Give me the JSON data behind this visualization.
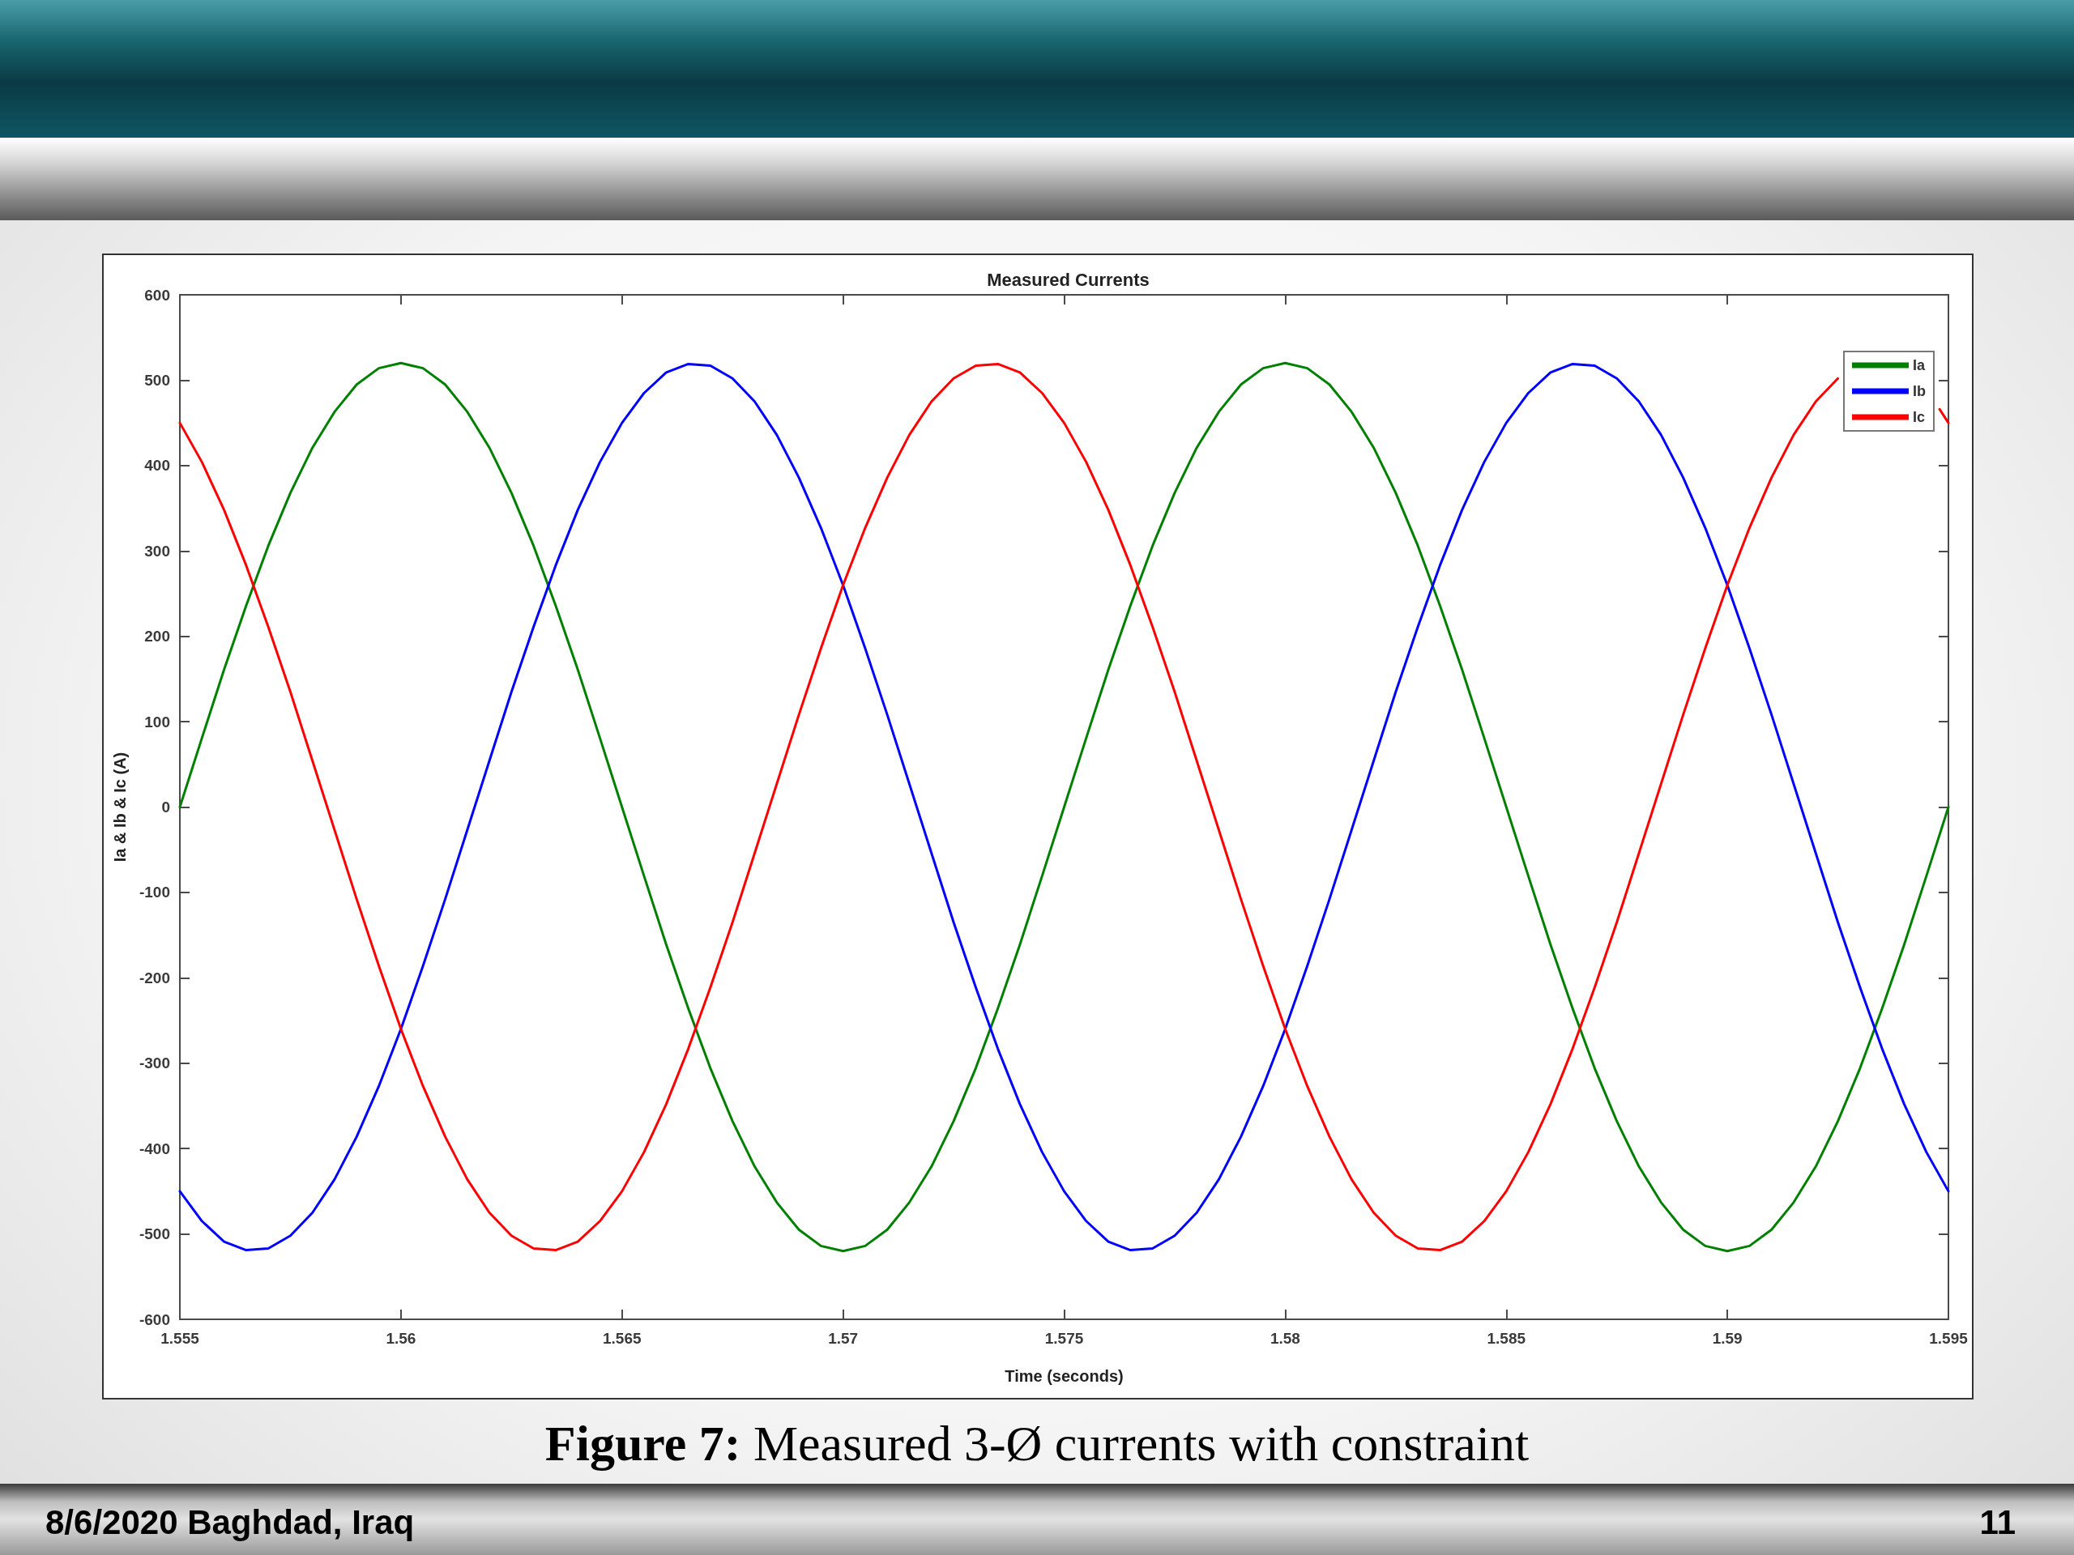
{
  "chart_data": {
    "type": "line",
    "title": "Measured Currents",
    "xlabel": "Time (seconds)",
    "ylabel": "Ia & Ib & Ic (A)",
    "x": [
      1.555,
      1.5555,
      1.556,
      1.5565,
      1.557,
      1.5575,
      1.558,
      1.5585,
      1.559,
      1.5595,
      1.56,
      1.5605,
      1.561,
      1.5615,
      1.562,
      1.5625,
      1.563,
      1.5635,
      1.564,
      1.5645,
      1.565,
      1.5655,
      1.566,
      1.5665,
      1.567,
      1.5675,
      1.568,
      1.5685,
      1.569,
      1.5695,
      1.57,
      1.5705,
      1.571,
      1.5715,
      1.572,
      1.5725,
      1.573,
      1.5735,
      1.574,
      1.5745,
      1.575,
      1.5755,
      1.576,
      1.5765,
      1.577,
      1.5775,
      1.578,
      1.5785,
      1.579,
      1.5795,
      1.58,
      1.5805,
      1.581,
      1.5815,
      1.582,
      1.5825,
      1.583,
      1.5835,
      1.584,
      1.5845,
      1.585,
      1.5855,
      1.586,
      1.5865,
      1.587,
      1.5875,
      1.588,
      1.5885,
      1.589,
      1.5895,
      1.59,
      1.5905,
      1.591,
      1.5915,
      1.592,
      1.5925,
      1.593,
      1.5935,
      1.594,
      1.5945,
      1.595
    ],
    "series": [
      {
        "name": "Ia",
        "color": "#008000",
        "values": [
          0,
          81,
          161,
          236,
          306,
          368,
          421,
          463,
          495,
          514,
          520,
          514,
          495,
          463,
          421,
          368,
          306,
          236,
          161,
          81,
          0,
          -81,
          -161,
          -236,
          -306,
          -368,
          -421,
          -463,
          -495,
          -514,
          -520,
          -514,
          -495,
          -463,
          -421,
          -368,
          -306,
          -236,
          -161,
          -81,
          0,
          81,
          161,
          236,
          306,
          368,
          421,
          463,
          495,
          514,
          520,
          514,
          495,
          463,
          421,
          368,
          306,
          236,
          161,
          81,
          0,
          -81,
          -161,
          -236,
          -306,
          -368,
          -421,
          -463,
          -495,
          -514,
          -520,
          -514,
          -495,
          -463,
          -421,
          -368,
          -306,
          -236,
          -161,
          -81,
          0
        ]
      },
      {
        "name": "Ib",
        "color": "#0000ff",
        "values": [
          -450,
          -485,
          -509,
          -519,
          -517,
          -502,
          -475,
          -436,
          -386,
          -327,
          -260,
          -186,
          -108,
          -27,
          54,
          135,
          211,
          283,
          348,
          404,
          450,
          485,
          509,
          519,
          517,
          502,
          475,
          436,
          386,
          327,
          260,
          186,
          108,
          27,
          -54,
          -135,
          -211,
          -283,
          -348,
          -404,
          -450,
          -485,
          -509,
          -519,
          -517,
          -502,
          -475,
          -436,
          -386,
          -327,
          -260,
          -186,
          -108,
          -27,
          54,
          135,
          211,
          283,
          348,
          404,
          450,
          485,
          509,
          519,
          517,
          502,
          475,
          436,
          386,
          327,
          260,
          186,
          108,
          27,
          -54,
          -135,
          -211,
          -283,
          -348,
          -404,
          -450
        ]
      },
      {
        "name": "Ic",
        "color": "#ff0000",
        "x": [
          1.555,
          1.5555,
          1.556,
          1.5565,
          1.557,
          1.5575,
          1.558,
          1.5585,
          1.559,
          1.5595,
          1.56,
          1.5605,
          1.561,
          1.5615,
          1.562,
          1.5625,
          1.563,
          1.5635,
          1.564,
          1.5645,
          1.565,
          1.5655,
          1.566,
          1.5665,
          1.567,
          1.5675,
          1.568,
          1.5685,
          1.569,
          1.5695,
          1.57,
          1.5705,
          1.571,
          1.5715,
          1.572,
          1.5725,
          1.573,
          1.5735,
          1.574,
          1.5745,
          1.575,
          1.5755,
          1.576,
          1.5765,
          1.577,
          1.5775,
          1.578,
          1.5785,
          1.579,
          1.5795,
          1.58,
          1.5805,
          1.581,
          1.5815,
          1.582,
          1.5825,
          1.583,
          1.5835,
          1.584,
          1.5845,
          1.585,
          1.5855,
          1.586,
          1.5865,
          1.587,
          1.5875,
          1.588,
          1.5885,
          1.589,
          1.5895,
          1.59,
          1.5905,
          1.591,
          1.5915,
          1.592,
          1.5925,
          1.593,
          1.5935,
          1.594,
          1.5945,
          1.5948,
          1.595
        ],
        "values": [
          450,
          404,
          348,
          283,
          211,
          135,
          54,
          -27,
          -108,
          -186,
          -260,
          -327,
          -386,
          -436,
          -475,
          -502,
          -517,
          -519,
          -509,
          -485,
          -450,
          -404,
          -348,
          -283,
          -211,
          -135,
          -54,
          27,
          108,
          186,
          260,
          327,
          386,
          436,
          475,
          502,
          517,
          519,
          509,
          485,
          450,
          404,
          348,
          283,
          211,
          135,
          54,
          -27,
          -108,
          -186,
          -260,
          -327,
          -386,
          -436,
          -475,
          -502,
          -517,
          -519,
          -509,
          -485,
          -450,
          -404,
          -348,
          -283,
          -211,
          -135,
          -54,
          27,
          108,
          186,
          260,
          327,
          386,
          436,
          475,
          502,
          null,
          null,
          null,
          null,
          466,
          450
        ]
      }
    ],
    "xlim": [
      1.555,
      1.595
    ],
    "xticks": [
      1.555,
      1.56,
      1.565,
      1.57,
      1.575,
      1.58,
      1.585,
      1.59,
      1.595
    ],
    "ylim": [
      -600,
      600
    ],
    "yticks": [
      -600,
      -500,
      -400,
      -300,
      -200,
      -100,
      0,
      100,
      200,
      300,
      400,
      500,
      600
    ],
    "grid": false,
    "legend": "top right",
    "marker": "none",
    "line_style": "solid",
    "annotations": [
      "Figure 7: Measured 3-Ø currents with constraint",
      "8/6/2020 Baghdad, Iraq",
      "11"
    ]
  }
}
